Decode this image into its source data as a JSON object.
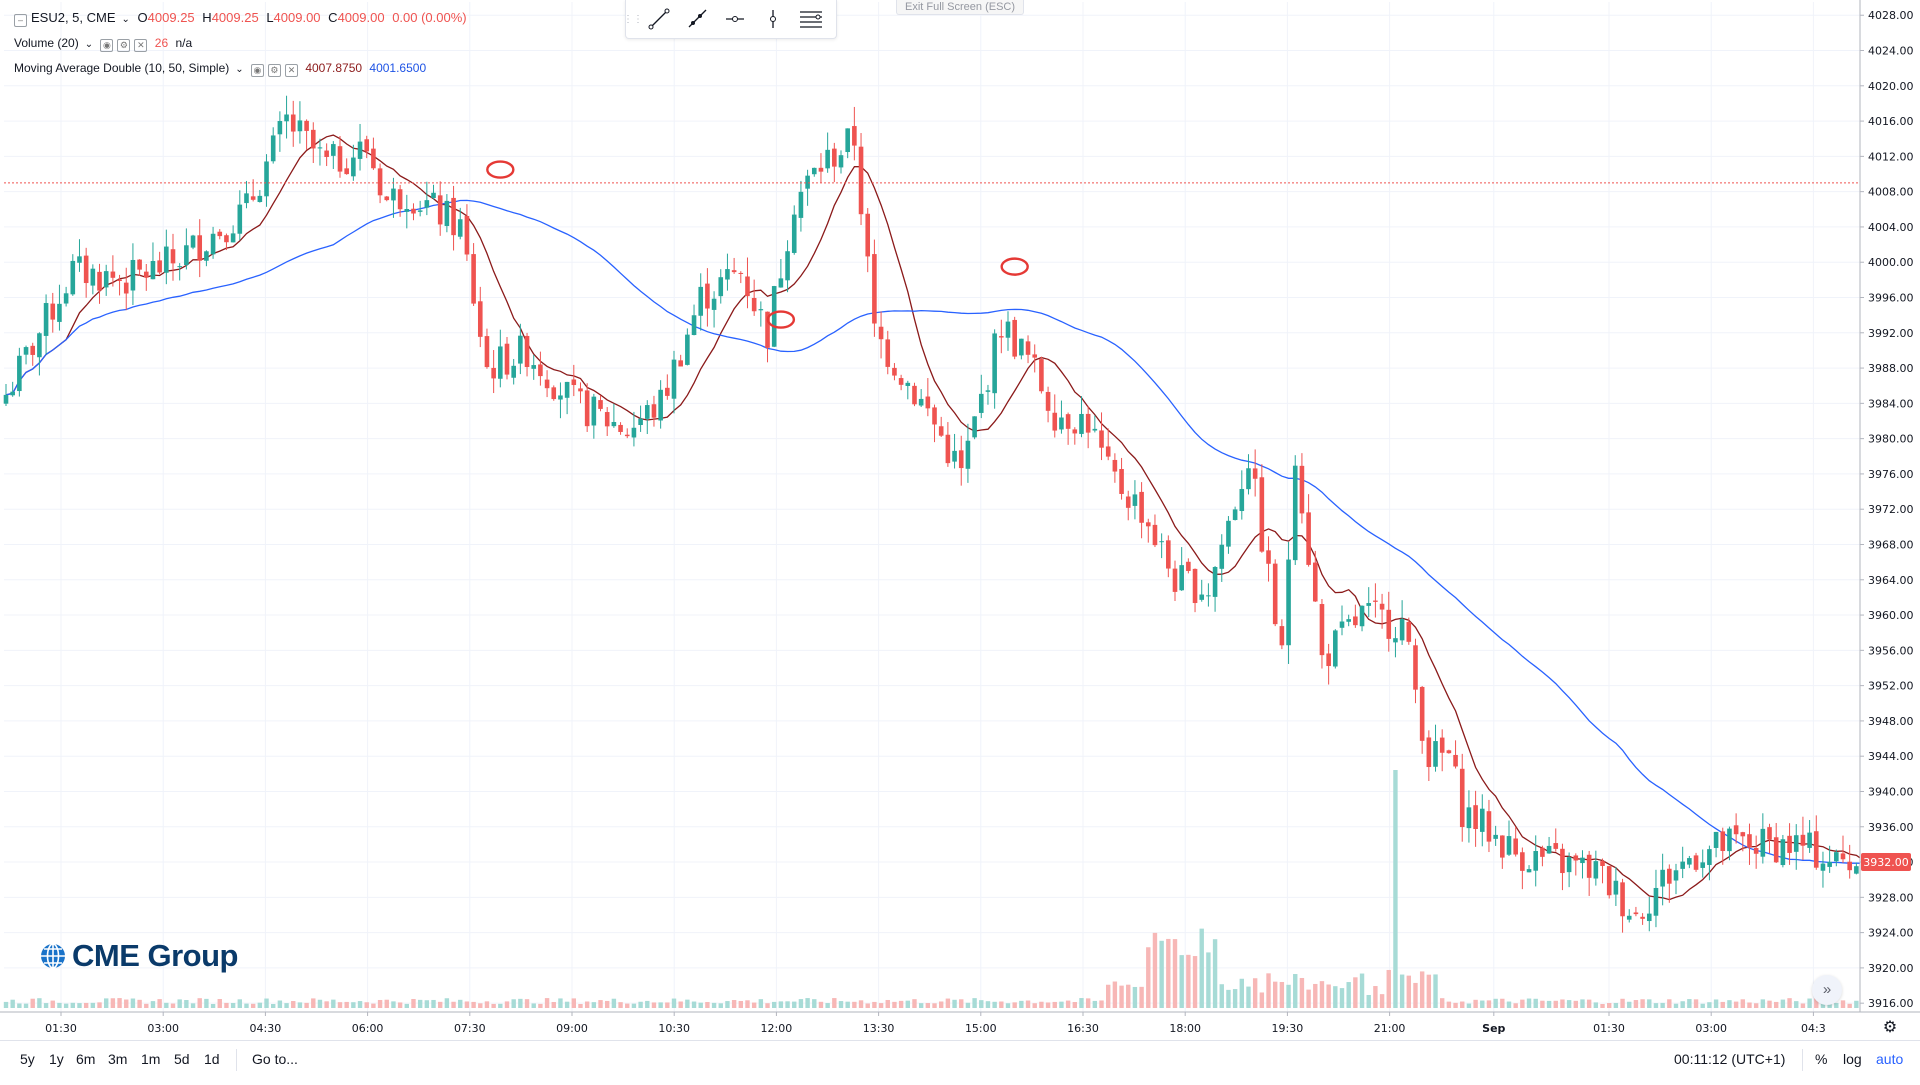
{
  "legend": {
    "symbol": "ESU2, 5, CME",
    "ohlc": {
      "o_label": "O",
      "o": "4009.25",
      "h_label": "H",
      "h": "4009.25",
      "l_label": "L",
      "l": "4009.00",
      "c_label": "C",
      "c": "4009.00",
      "change": "0.00 (0.00%)"
    },
    "volume_label": "Volume (20)",
    "volume_value": "26",
    "volume_ma": "n/a",
    "ma_label": "Moving Average Double (10, 50, Simple)",
    "ma_fast": "4007.8750",
    "ma_slow": "4001.6500"
  },
  "toolbar": {
    "icons": [
      "trend-line-icon",
      "ray-icon",
      "horizontal-ray-icon",
      "vertical-line-icon",
      "parallel-channel-icon"
    ]
  },
  "exit_fullscreen": "Exit Full Screen (ESC)",
  "logo_text": "CME Group",
  "bottom_bar": {
    "ranges": [
      "5y",
      "1y",
      "6m",
      "3m",
      "1m",
      "5d",
      "1d"
    ],
    "goto": "Go to...",
    "clock": "00:11:12 (UTC+1)",
    "percent": "%",
    "log": "log",
    "auto": "auto"
  },
  "colors": {
    "up": "#26a69a",
    "down": "#ef5350",
    "ma_fast": "#8b1a1a",
    "ma_slow": "#2962ff",
    "price_line": "#ef5350",
    "marker": "#e53935"
  },
  "chart_data": {
    "type": "candlestick",
    "y_ticks": [
      3916,
      3920,
      3924,
      3928,
      3932,
      3936,
      3940,
      3944,
      3948,
      3952,
      3956,
      3960,
      3964,
      3968,
      3972,
      3976,
      3980,
      3984,
      3988,
      3992,
      3996,
      4000,
      4004,
      4008,
      4012,
      4016,
      4020,
      4024,
      4028
    ],
    "ylim": [
      3915,
      4029.5
    ],
    "x_ticks": [
      "01:30",
      "03:00",
      "04:30",
      "06:00",
      "07:30",
      "09:00",
      "10:30",
      "12:00",
      "13:30",
      "15:00",
      "16:30",
      "18:00",
      "19:30",
      "21:00",
      "Sep",
      "01:30",
      "03:00",
      "04:3"
    ],
    "current_price_label": "3932.00",
    "reference_price": 4009.0,
    "grid": true,
    "waypoints": {
      "bar_index": [
        0,
        5,
        10,
        18,
        25,
        36,
        42,
        48,
        54,
        57,
        60,
        68,
        72,
        78,
        85,
        93,
        98,
        104,
        110,
        114,
        118,
        122,
        127,
        130,
        138,
        143,
        149,
        153,
        157,
        162,
        165,
        170,
        175,
        180,
        186,
        191,
        193,
        197,
        203,
        209,
        213,
        216,
        218,
        226,
        232,
        238,
        244,
        248,
        253,
        258,
        263,
        268,
        274,
        280
      ],
      "close": [
        3985,
        3992,
        3999,
        3998,
        4000,
        4006,
        4016,
        4011,
        4013,
        4007,
        4008,
        4004,
        3988,
        3990,
        3984,
        3981,
        3984,
        3996,
        3999,
        3992,
        4007,
        4011,
        4014,
        3992,
        3983,
        3976,
        3993,
        3989,
        3983,
        3982,
        3976,
        3972,
        3964,
        3963,
        3978,
        3955,
        3979,
        3955,
        3960,
        3959,
        3944,
        3944,
        3938,
        3933,
        3932,
        3931,
        3926,
        3930,
        3933,
        3934,
        3934,
        3934,
        3932,
        3932
      ]
    },
    "volume_spike": {
      "bar_index": 208,
      "value": "largest"
    },
    "markers": [
      {
        "bar_index": 74,
        "price": 4010.5
      },
      {
        "bar_index": 116,
        "price": 3993.5
      },
      {
        "bar_index": 151,
        "price": 3999.5
      }
    ]
  }
}
